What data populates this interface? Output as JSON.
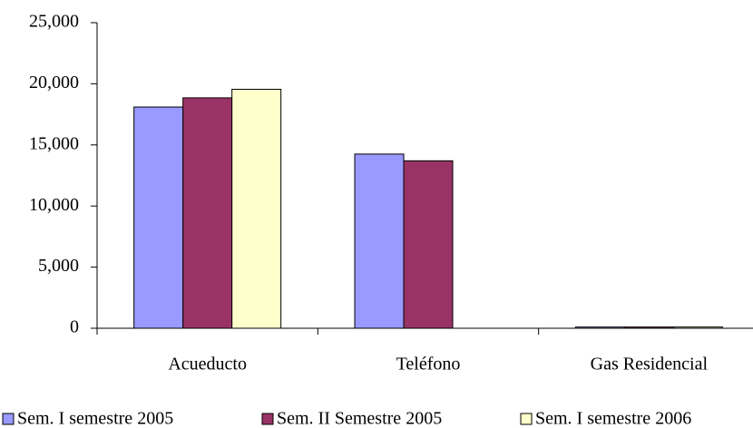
{
  "chart_data": {
    "type": "bar",
    "categories": [
      "Acueducto",
      "Teléfono",
      "Gas Residencial"
    ],
    "series": [
      {
        "name": "Sem. I semestre 2005",
        "color": "#9999ff",
        "values": [
          18100,
          14250,
          100
        ]
      },
      {
        "name": "Sem. II Semestre 2005",
        "color": "#993366",
        "values": [
          18850,
          13700,
          100
        ]
      },
      {
        "name": "Sem. I semestre 2006",
        "color": "#ffffcc",
        "values": [
          19550,
          null,
          100
        ]
      }
    ],
    "ylim": [
      0,
      25000
    ],
    "yticks": [
      0,
      {
        "value": 5000,
        "label": "5,000"
      },
      {
        "value": 10000,
        "label": "10,000"
      },
      {
        "value": 15000,
        "label": "15,000"
      },
      {
        "value": 20000,
        "label": "20,000"
      },
      {
        "value": 25000,
        "label": "25,000"
      }
    ],
    "legend": "bottom"
  }
}
